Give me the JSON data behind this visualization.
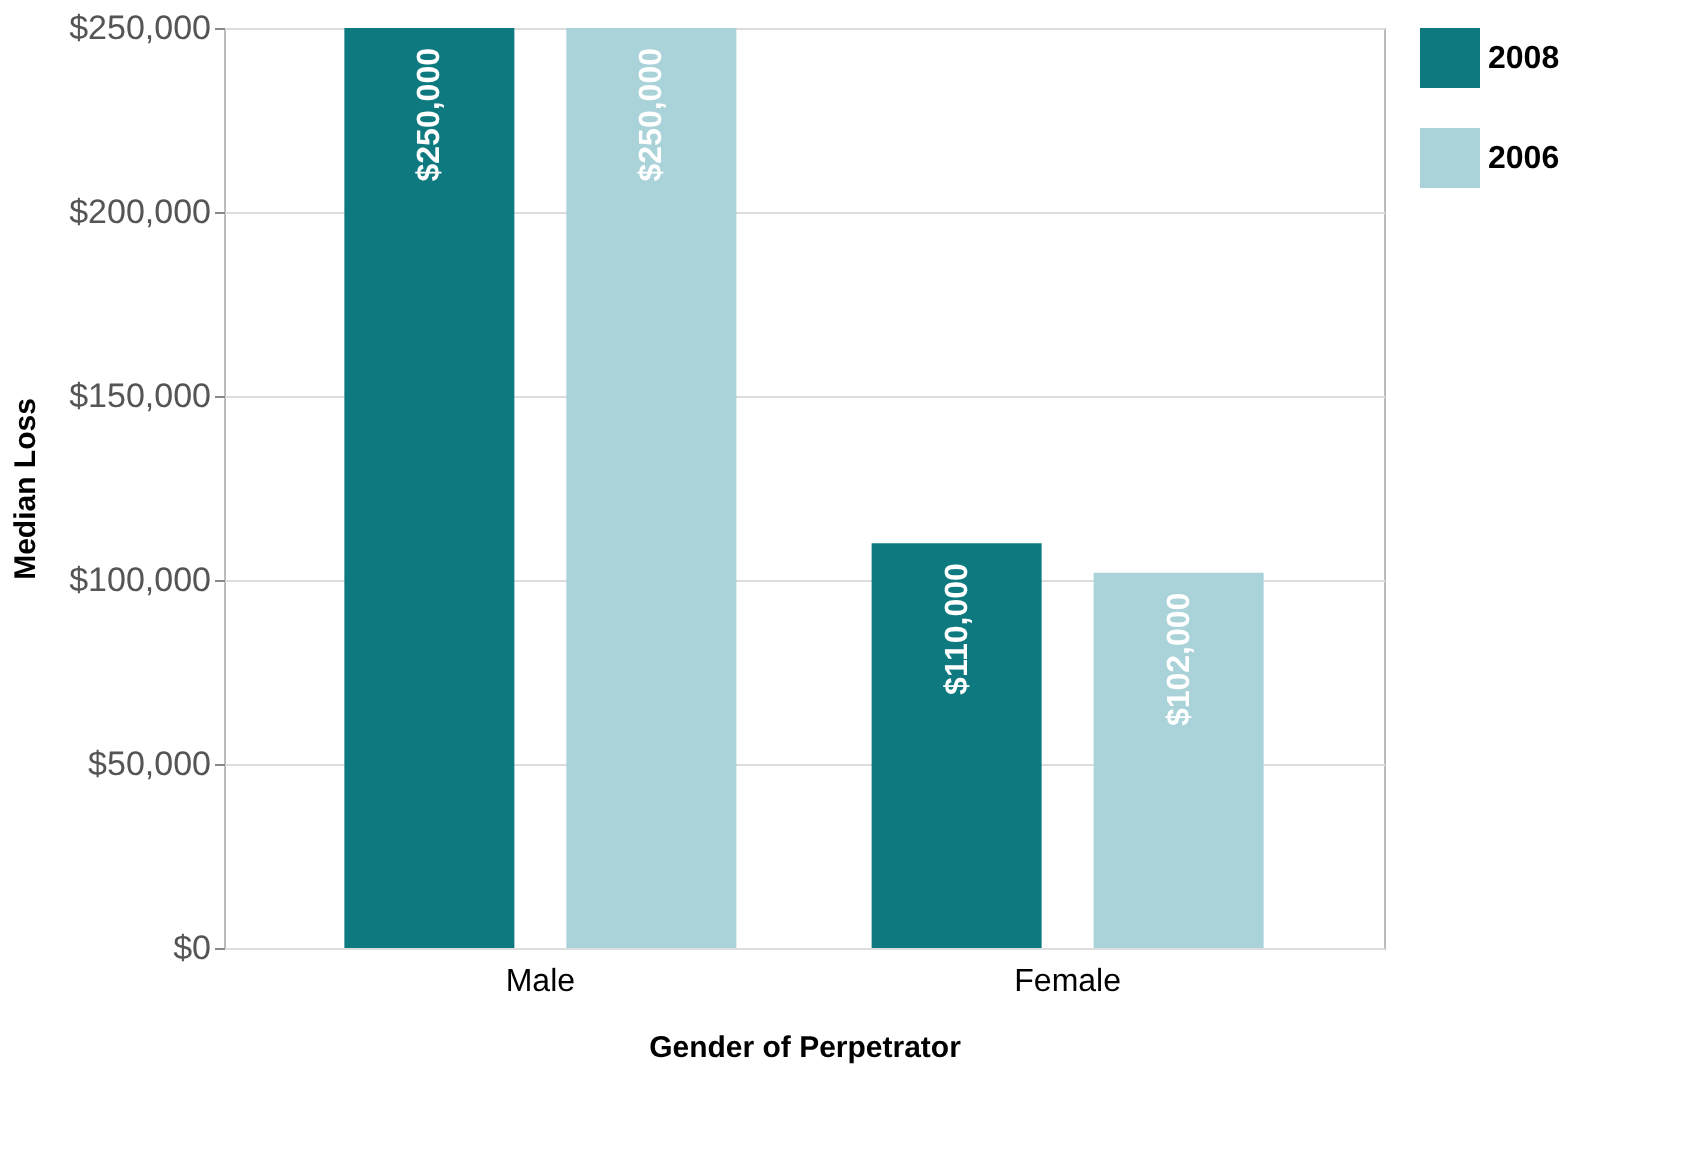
{
  "chart_data": {
    "type": "bar",
    "xlabel": "Gender of Perpetrator",
    "ylabel": "Median Loss",
    "categories": [
      "Male",
      "Female"
    ],
    "series": [
      {
        "name": "2008",
        "color": "#0e7a80",
        "values": [
          250000,
          110000
        ],
        "value_labels": [
          "$250,000",
          "$110,000"
        ]
      },
      {
        "name": "2006",
        "color": "#a9d3d9",
        "values": [
          250000,
          102000
        ],
        "value_labels": [
          "$250,000",
          "$102,000"
        ]
      }
    ],
    "ylim": [
      0,
      250000
    ],
    "yticks": [
      {
        "value": 0,
        "label": "$0"
      },
      {
        "value": 50000,
        "label": "$50,000"
      },
      {
        "value": 100000,
        "label": "$100,000"
      },
      {
        "value": 150000,
        "label": "$150,000"
      },
      {
        "value": 200000,
        "label": "$200,000"
      },
      {
        "value": 250000,
        "label": "$250,000"
      }
    ],
    "grid": "y",
    "legend": "top right"
  }
}
